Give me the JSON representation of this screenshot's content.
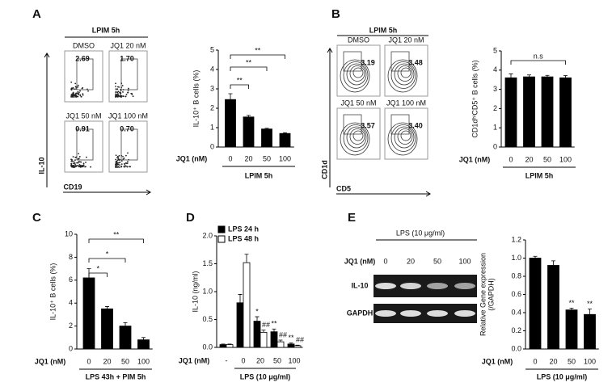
{
  "panel_letters": [
    "A",
    "B",
    "C",
    "D",
    "E"
  ],
  "flow_panels": [
    {
      "header": "LPIM 5h",
      "conditions": [
        "DMSO",
        "JQ1 20 nM",
        "JQ1 50 nM",
        "JQ1 100 nM"
      ],
      "percentages": [
        "2.69",
        "1.70",
        "0.91",
        "0.70"
      ],
      "y_axis": "IL-10",
      "x_axis": "CD19"
    },
    {
      "header": "LPIM 5h",
      "conditions": [
        "DMSO",
        "JQ1 20 nM",
        "JQ1 50 nM",
        "JQ1 100 nM"
      ],
      "percentages": [
        "3.19",
        "3.48",
        "3.57",
        "3.40"
      ],
      "y_axis": "CD1d",
      "x_axis": "CD5"
    }
  ],
  "gel": {
    "header": "LPS (10 μg/ml)",
    "lane_label": "JQ1 (nM)",
    "lanes": [
      "0",
      "20",
      "50",
      "100"
    ],
    "bands": [
      "IL-10",
      "GAPDH"
    ]
  },
  "chart_data": [
    {
      "type": "bar",
      "ylabel": [
        "IL-10⁺ B cells (%)"
      ],
      "x_label": "JQ1 (nM)",
      "categories": [
        "0",
        "20",
        "50",
        "100"
      ],
      "values": [
        2.45,
        1.55,
        0.93,
        0.7
      ],
      "errors": [
        0.3,
        0.08,
        0.04,
        0.04
      ],
      "color": "#000000",
      "ylim": [
        0,
        5
      ],
      "yticks": [
        0,
        1,
        2,
        3,
        4,
        5
      ],
      "group_label": "LPIM 5h",
      "annotations": [
        "**",
        "**",
        "**"
      ]
    },
    {
      "type": "bar",
      "ylabel": [
        "CD1dʰⁱCD5⁺ B cells (%)"
      ],
      "x_label": "JQ1 (nM)",
      "categories": [
        "0",
        "20",
        "50",
        "100"
      ],
      "values": [
        3.6,
        3.65,
        3.65,
        3.6
      ],
      "errors": [
        0.2,
        0.1,
        0.08,
        0.12
      ],
      "color": "#000000",
      "ylim": [
        0,
        5
      ],
      "yticks": [
        0,
        1,
        2,
        3,
        4,
        5
      ],
      "group_label": "LPIM 5h",
      "annotations": [
        "n.s"
      ]
    },
    {
      "type": "bar",
      "ylabel": [
        "IL-10⁺ B cells (%)"
      ],
      "x_label": "JQ1 (nM)",
      "categories": [
        "0",
        "20",
        "50",
        "100"
      ],
      "values": [
        6.2,
        3.5,
        2.0,
        0.8
      ],
      "errors": [
        0.8,
        0.2,
        0.3,
        0.2
      ],
      "color": "#000000",
      "ylim": [
        0,
        10
      ],
      "yticks": [
        0,
        2,
        4,
        6,
        8,
        10
      ],
      "group_label": "LPS 43h + PIM 5h",
      "annotations": [
        "**",
        "*",
        "*"
      ]
    },
    {
      "type": "grouped_bar",
      "ylabel": [
        "IL-10 (ng/ml)"
      ],
      "x_label": "JQ1 (nM)",
      "categories": [
        "-",
        "0",
        "20",
        "50",
        "100"
      ],
      "series": [
        {
          "name": "LPS 24 h",
          "color": "#000000",
          "values": [
            0.05,
            0.8,
            0.47,
            0.28,
            0.06
          ],
          "errors": [
            0.01,
            0.15,
            0.08,
            0.05,
            0.02
          ]
        },
        {
          "name": "LPS 48 h",
          "color": "#ffffff",
          "values": [
            0.05,
            1.52,
            0.27,
            0.1,
            0.03
          ],
          "errors": [
            0.01,
            0.15,
            0.04,
            0.03,
            0.01
          ]
        }
      ],
      "ylim": [
        0,
        2
      ],
      "yticks": [
        {
          "value": 0,
          "label": "0.0"
        },
        {
          "value": 0.5,
          "label": "0.5"
        },
        {
          "value": 1,
          "label": "1.0"
        },
        {
          "value": 1.5,
          "label": "1.5"
        },
        {
          "value": 2,
          "label": "2.0"
        }
      ],
      "group_label": "LPS (10 μg/ml)",
      "annotations": [
        "*",
        "##",
        "**",
        "##",
        "**",
        "##"
      ]
    },
    {
      "type": "bar",
      "ylabel": [
        "Relative Gene expression",
        "(/GAPDH)"
      ],
      "x_label": "JQ1 (nM)",
      "categories": [
        "0",
        "20",
        "50",
        "100"
      ],
      "values": [
        1.0,
        0.92,
        0.43,
        0.38
      ],
      "errors": [
        0.02,
        0.05,
        0.02,
        0.06
      ],
      "color": "#000000",
      "ylim": [
        0,
        1.2
      ],
      "yticks": [
        {
          "value": 0,
          "label": "0.0"
        },
        {
          "value": 0.2,
          "label": "0.2"
        },
        {
          "value": 0.4,
          "label": "0.4"
        },
        {
          "value": 0.6,
          "label": "0.6"
        },
        {
          "value": 0.8,
          "label": "0.8"
        },
        {
          "value": 1,
          "label": "1.0"
        },
        {
          "value": 1.2,
          "label": "1.2"
        }
      ],
      "group_label": "LPS (10 μg/ml)",
      "annotations": [
        "**",
        "**"
      ]
    }
  ]
}
